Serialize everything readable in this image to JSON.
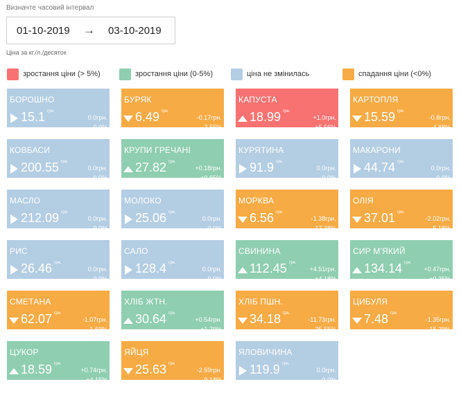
{
  "header": {
    "interval_label": "Визначте часовий інтервал",
    "date_from": "01-10-2019",
    "arrow": "→",
    "date_to": "03-10-2019",
    "unit_note": "Ціна за кг./л./десяток"
  },
  "legend": [
    {
      "label": "зростання ціни (> 5%)",
      "color": "#f87272"
    },
    {
      "label": "зростання ціни (0-5%)",
      "color": "#8fceb0"
    },
    {
      "label": "ціна не змінилась",
      "color": "#b3cde3"
    },
    {
      "label": "спадання ціни (<0%)",
      "color": "#f7ab45"
    }
  ],
  "currency": "грн.",
  "products": [
    {
      "name": "БОРОШНО",
      "price": "15.1",
      "delta_abs": "0.0грн.",
      "delta_pct": "0.0%",
      "trend": "flat",
      "status": "blue"
    },
    {
      "name": "БУРЯК",
      "price": "6.49",
      "delta_abs": "-0.17грн.",
      "delta_pct": "-2.55%",
      "trend": "down",
      "status": "orange"
    },
    {
      "name": "КАПУСТА",
      "price": "18.99",
      "delta_abs": "+1.0грн.",
      "delta_pct": "+5.56%",
      "trend": "up",
      "status": "red"
    },
    {
      "name": "КАРТОПЛЯ",
      "price": "15.59",
      "delta_abs": "-0.8грн.",
      "delta_pct": "-4.88%",
      "trend": "down",
      "status": "orange"
    },
    {
      "name": "КОВБАСИ",
      "price": "200.55",
      "delta_abs": "0.0грн.",
      "delta_pct": "0.0%",
      "trend": "flat",
      "status": "blue"
    },
    {
      "name": "КРУПИ ГРЕЧАНІ",
      "price": "27.82",
      "delta_abs": "+0.18грн.",
      "delta_pct": "+0.65%",
      "trend": "up",
      "status": "green"
    },
    {
      "name": "КУРЯТИНА",
      "price": "91.9",
      "delta_abs": "0.0грн.",
      "delta_pct": "0.0%",
      "trend": "flat",
      "status": "blue"
    },
    {
      "name": "МАКАРОНИ",
      "price": "44.74",
      "delta_abs": "0.0грн.",
      "delta_pct": "0.0%",
      "trend": "flat",
      "status": "blue"
    },
    {
      "name": "МАСЛО",
      "price": "212.09",
      "delta_abs": "0.0грн.",
      "delta_pct": "0.0%",
      "trend": "flat",
      "status": "blue"
    },
    {
      "name": "МОЛОКО",
      "price": "25.06",
      "delta_abs": "0.0грн.",
      "delta_pct": "0.0%",
      "trend": "flat",
      "status": "blue"
    },
    {
      "name": "МОРКВА",
      "price": "6.56",
      "delta_abs": "-1.38грн.",
      "delta_pct": "-17.38%",
      "trend": "down",
      "status": "orange"
    },
    {
      "name": "ОЛІЯ",
      "price": "37.01",
      "delta_abs": "-2.02грн.",
      "delta_pct": "-5.18%",
      "trend": "down",
      "status": "orange"
    },
    {
      "name": "РИС",
      "price": "26.46",
      "delta_abs": "0.0грн.",
      "delta_pct": "0.0%",
      "trend": "flat",
      "status": "blue"
    },
    {
      "name": "САЛО",
      "price": "128.4",
      "delta_abs": "0.0грн.",
      "delta_pct": "0.0%",
      "trend": "flat",
      "status": "blue"
    },
    {
      "name": "СВИНИНА",
      "price": "112.45",
      "delta_abs": "+4.51грн.",
      "delta_pct": "+4.18%",
      "trend": "up",
      "status": "green"
    },
    {
      "name": "СИР М'ЯКИЙ",
      "price": "134.14",
      "delta_abs": "+0.47грн.",
      "delta_pct": "+0.35%",
      "trend": "up",
      "status": "green"
    },
    {
      "name": "СМЕТАНА",
      "price": "62.07",
      "delta_abs": "-1.07грн.",
      "delta_pct": "-1.69%",
      "trend": "down",
      "status": "orange"
    },
    {
      "name": "ХЛІБ ЖТН.",
      "price": "30.64",
      "delta_abs": "+0.54грн.",
      "delta_pct": "+1.79%",
      "trend": "up",
      "status": "green"
    },
    {
      "name": "ХЛІБ ПШН.",
      "price": "34.18",
      "delta_abs": "-11.73грн.",
      "delta_pct": "-25.55%",
      "trend": "down",
      "status": "orange"
    },
    {
      "name": "ЦИБУЛЯ",
      "price": "7.48",
      "delta_abs": "-1.35грн.",
      "delta_pct": "-15.29%",
      "trend": "down",
      "status": "orange"
    },
    {
      "name": "ЦУКОР",
      "price": "18.59",
      "delta_abs": "+0.74грн.",
      "delta_pct": "+4.15%",
      "trend": "up",
      "status": "green"
    },
    {
      "name": "ЯЙЦЯ",
      "price": "25.63",
      "delta_abs": "-2.59грн.",
      "delta_pct": "-9.18%",
      "trend": "down",
      "status": "orange"
    },
    {
      "name": "ЯЛОВИЧИНА",
      "price": "119.9",
      "delta_abs": "0.0грн.",
      "delta_pct": "0.0%",
      "trend": "flat",
      "status": "blue"
    }
  ]
}
